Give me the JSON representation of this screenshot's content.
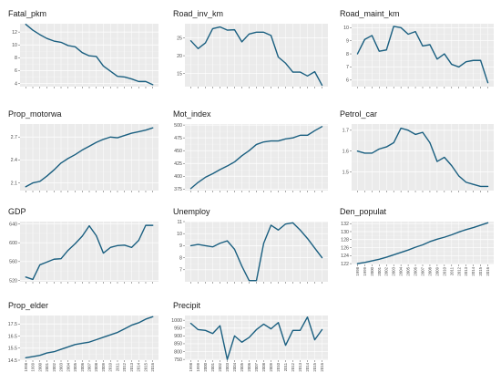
{
  "chart_data": [
    {
      "type": "line",
      "title": "Fatal_pkm",
      "x": [
        1998,
        1999,
        2000,
        2001,
        2002,
        2003,
        2004,
        2005,
        2006,
        2007,
        2008,
        2009,
        2010,
        2011,
        2012,
        2013,
        2014,
        2015,
        2016
      ],
      "values": [
        13.2,
        12.3,
        11.6,
        11.0,
        10.6,
        10.4,
        9.9,
        9.7,
        8.8,
        8.3,
        8.2,
        6.7,
        5.9,
        5.1,
        5.0,
        4.7,
        4.3,
        4.3,
        3.8
      ],
      "ylim": [
        3.5,
        13.3
      ],
      "yticks": [
        4,
        6,
        8,
        10,
        12
      ],
      "yticklabels": [
        "4",
        "6",
        "8",
        "10",
        "12"
      ],
      "x_labels_shown": false,
      "color": "#1a5f80"
    },
    {
      "type": "line",
      "title": "Road_inv_km",
      "x": [
        1998,
        1999,
        2000,
        2001,
        2002,
        2003,
        2004,
        2005,
        2006,
        2007,
        2008,
        2009,
        2010,
        2011,
        2012,
        2013,
        2014,
        2015,
        2016
      ],
      "values": [
        24.2,
        22.0,
        23.6,
        27.6,
        28.1,
        27.2,
        27.3,
        23.9,
        26.1,
        26.6,
        26.6,
        25.7,
        19.6,
        17.9,
        15.4,
        15.4,
        14.3,
        15.5,
        11.7
      ],
      "ylim": [
        11.3,
        29.0
      ],
      "yticks": [
        15,
        20,
        25
      ],
      "yticklabels": [
        "15",
        "20",
        "25"
      ],
      "x_labels_shown": false,
      "color": "#1a5f80"
    },
    {
      "type": "line",
      "title": "Road_maint_km",
      "x": [
        1998,
        1999,
        2000,
        2001,
        2002,
        2003,
        2004,
        2005,
        2006,
        2007,
        2008,
        2009,
        2010,
        2011,
        2012,
        2013,
        2014,
        2015,
        2016
      ],
      "values": [
        8.0,
        9.1,
        9.4,
        8.2,
        8.3,
        10.1,
        10.0,
        9.5,
        9.7,
        8.6,
        8.7,
        7.6,
        8.0,
        7.2,
        7.0,
        7.4,
        7.5,
        7.5,
        5.8
      ],
      "ylim": [
        5.5,
        10.3
      ],
      "yticks": [
        6,
        7,
        8,
        9,
        10
      ],
      "yticklabels": [
        "6",
        "7",
        "8",
        "9",
        "10"
      ],
      "x_labels_shown": false,
      "color": "#1a5f80"
    },
    {
      "type": "line",
      "title": "Prop_motorwa",
      "x": [
        1998,
        1999,
        2000,
        2001,
        2002,
        2003,
        2004,
        2005,
        2006,
        2007,
        2008,
        2009,
        2010,
        2011,
        2012,
        2013,
        2014,
        2015,
        2016
      ],
      "values": [
        2.05,
        2.1,
        2.12,
        2.19,
        2.27,
        2.36,
        2.42,
        2.47,
        2.53,
        2.58,
        2.63,
        2.67,
        2.7,
        2.69,
        2.72,
        2.75,
        2.77,
        2.79,
        2.82
      ],
      "ylim": [
        2.0,
        2.87
      ],
      "yticks": [
        2.1,
        2.4,
        2.7
      ],
      "yticklabels": [
        "2.1",
        "2.4",
        "2.7"
      ],
      "x_labels_shown": false,
      "color": "#1a5f80"
    },
    {
      "type": "line",
      "title": "Mot_index",
      "x": [
        1998,
        1999,
        2000,
        2001,
        2002,
        2003,
        2004,
        2005,
        2006,
        2007,
        2008,
        2009,
        2010,
        2011,
        2012,
        2013,
        2014,
        2015,
        2016
      ],
      "values": [
        376,
        388,
        398,
        405,
        413,
        420,
        428,
        440,
        450,
        462,
        467,
        469,
        469,
        473,
        475,
        480,
        480,
        489,
        497
      ],
      "ylim": [
        372,
        502
      ],
      "yticks": [
        375,
        400,
        425,
        450,
        475,
        500
      ],
      "yticklabels": [
        "375",
        "400",
        "425",
        "450",
        "475",
        "500"
      ],
      "x_labels_shown": false,
      "color": "#1a5f80"
    },
    {
      "type": "line",
      "title": "Petrol_car",
      "x": [
        1998,
        1999,
        2000,
        2001,
        2002,
        2003,
        2004,
        2005,
        2006,
        2007,
        2008,
        2009,
        2010,
        2011,
        2012,
        2013,
        2014,
        2015,
        2016
      ],
      "values": [
        1.6,
        1.59,
        1.59,
        1.61,
        1.62,
        1.64,
        1.71,
        1.7,
        1.68,
        1.69,
        1.64,
        1.55,
        1.57,
        1.53,
        1.48,
        1.45,
        1.44,
        1.43,
        1.43
      ],
      "ylim": [
        1.41,
        1.73
      ],
      "yticks": [
        1.5,
        1.6,
        1.7
      ],
      "yticklabels": [
        "1.5",
        "1.6",
        "1.7"
      ],
      "x_labels_shown": false,
      "color": "#1a5f80"
    },
    {
      "type": "line",
      "title": "GDP",
      "x": [
        1998,
        1999,
        2000,
        2001,
        2002,
        2003,
        2004,
        2005,
        2006,
        2007,
        2008,
        2009,
        2010,
        2011,
        2012,
        2013,
        2014,
        2015,
        2016
      ],
      "values": [
        527,
        522,
        553,
        559,
        565,
        566,
        584,
        598,
        614,
        636,
        615,
        578,
        590,
        594,
        595,
        590,
        605,
        637,
        637
      ],
      "ylim": [
        517,
        645
      ],
      "yticks": [
        520,
        560,
        600,
        640
      ],
      "yticklabels": [
        "520",
        "560",
        "600",
        "640"
      ],
      "x_labels_shown": false,
      "color": "#1a5f80"
    },
    {
      "type": "line",
      "title": "Unemploy",
      "x": [
        1998,
        1999,
        2000,
        2001,
        2002,
        2003,
        2004,
        2005,
        2006,
        2007,
        2008,
        2009,
        2010,
        2011,
        2012,
        2013,
        2014,
        2015,
        2016
      ],
      "values": [
        9.0,
        9.1,
        9.0,
        8.9,
        9.2,
        9.4,
        8.7,
        7.3,
        6.1,
        6.1,
        9.2,
        10.7,
        10.3,
        10.8,
        10.9,
        10.3,
        9.6,
        8.8,
        8.0
      ],
      "ylim": [
        6.0,
        11.0
      ],
      "yticks": [
        7,
        8,
        9,
        10,
        11
      ],
      "yticklabels": [
        "7",
        "8",
        "9",
        "10",
        "11"
      ],
      "x_labels_shown": false,
      "color": "#1a5f80"
    },
    {
      "type": "line",
      "title": "Den_populat",
      "x": [
        1998,
        1999,
        2000,
        2001,
        2002,
        2003,
        2004,
        2005,
        2006,
        2007,
        2008,
        2009,
        2010,
        2011,
        2012,
        2013,
        2014,
        2015,
        2016
      ],
      "values": [
        122.0,
        122.3,
        122.7,
        123.1,
        123.6,
        124.2,
        124.8,
        125.4,
        126.1,
        126.7,
        127.5,
        128.1,
        128.6,
        129.2,
        129.9,
        130.5,
        131.0,
        131.6,
        132.2
      ],
      "ylim": [
        121.8,
        132.5
      ],
      "yticks": [
        122,
        124,
        126,
        128,
        130,
        132
      ],
      "yticklabels": [
        "122",
        "124",
        "126",
        "128",
        "130",
        "132"
      ],
      "x_labels_shown": true,
      "color": "#1a5f80"
    },
    {
      "type": "line",
      "title": "Prop_elder",
      "x": [
        1998,
        1999,
        2000,
        2001,
        2002,
        2003,
        2004,
        2005,
        2006,
        2007,
        2008,
        2009,
        2010,
        2011,
        2012,
        2013,
        2014,
        2015,
        2016
      ],
      "values": [
        14.7,
        14.8,
        14.9,
        15.1,
        15.2,
        15.4,
        15.6,
        15.8,
        15.9,
        16.0,
        16.2,
        16.4,
        16.6,
        16.8,
        17.1,
        17.4,
        17.6,
        17.9,
        18.1
      ],
      "ylim": [
        14.5,
        18.2
      ],
      "yticks": [
        14.5,
        15.5,
        16.5,
        17.5
      ],
      "yticklabels": [
        "14.5",
        "15.5",
        "16.5",
        "17.5"
      ],
      "x_labels_shown": true,
      "color": "#1a5f80"
    },
    {
      "type": "line",
      "title": "Precipit",
      "x": [
        1998,
        1999,
        2000,
        2001,
        2002,
        2003,
        2004,
        2005,
        2006,
        2007,
        2008,
        2009,
        2010,
        2011,
        2012,
        2013,
        2014,
        2015,
        2016
      ],
      "values": [
        980,
        940,
        935,
        915,
        965,
        750,
        900,
        860,
        890,
        940,
        975,
        945,
        985,
        840,
        935,
        935,
        1020,
        875,
        940
      ],
      "ylim": [
        745,
        1030
      ],
      "yticks": [
        750,
        800,
        850,
        900,
        950,
        1000
      ],
      "yticklabels": [
        "750",
        "800",
        "850",
        "900",
        "950",
        "1000"
      ],
      "x_labels_shown": true,
      "color": "#1a5f80"
    }
  ]
}
